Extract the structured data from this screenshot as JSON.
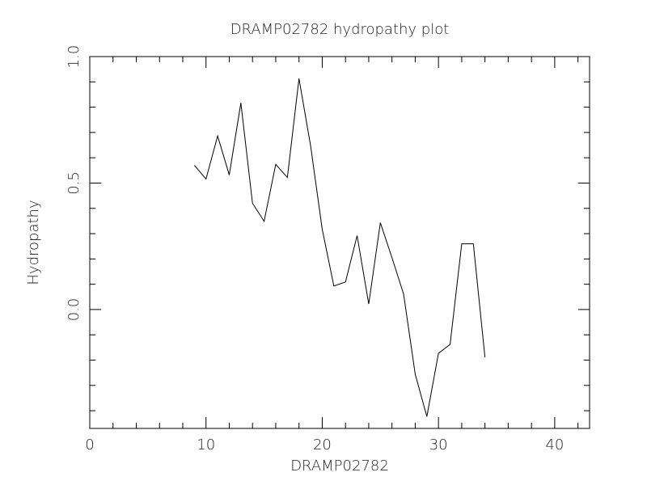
{
  "chart_data": {
    "type": "line",
    "title": "DRAMP02782 hydropathy plot",
    "x_label": "DRAMP02782",
    "y_label": "Hydropathy",
    "x": [
      9,
      10,
      11,
      12,
      13,
      14,
      15,
      16,
      17,
      18,
      19,
      20,
      21,
      22,
      23,
      24,
      25,
      26,
      27,
      28,
      29,
      30,
      31,
      32,
      33,
      34
    ],
    "series": [
      {
        "name": "Hydropathy",
        "color": "#000000",
        "values": [
          0.57,
          0.516,
          0.686,
          0.532,
          0.817,
          0.42,
          0.349,
          0.574,
          0.522,
          0.913,
          0.647,
          0.317,
          0.093,
          0.109,
          0.292,
          0.022,
          0.343,
          0.205,
          0.061,
          -0.256,
          -0.423,
          -0.173,
          -0.138,
          0.26,
          0.26,
          -0.189
        ]
      }
    ],
    "xlim": [
      0,
      43
    ],
    "ylim": [
      -0.47,
      1.0
    ],
    "xticks": [
      0,
      10,
      20,
      30,
      40
    ],
    "yticks": [
      {
        "value": 0,
        "label": "0.0"
      },
      {
        "value": 0.5,
        "label": "0.5"
      },
      {
        "value": 1,
        "label": "1.0"
      }
    ],
    "x_minor_ticks": [
      2,
      4,
      6,
      8,
      12,
      14,
      16,
      18,
      22,
      24,
      26,
      28,
      32,
      34,
      36,
      38,
      42
    ],
    "y_minor_ticks": [
      -0.4,
      -0.3,
      -0.2,
      -0.1,
      0.1,
      0.2,
      0.3,
      0.4,
      0.6,
      0.7,
      0.8,
      0.9
    ]
  }
}
